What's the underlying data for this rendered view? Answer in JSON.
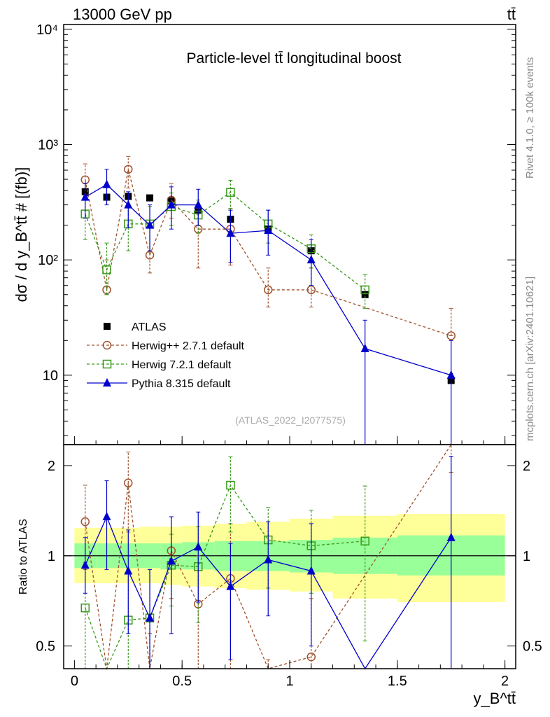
{
  "header": {
    "energy": "13000 GeV pp",
    "process": "tt̄"
  },
  "chart_data": {
    "type": "line",
    "title": "Particle-level tt̄ longitudinal boost",
    "xlabel": "y_B^tt̄",
    "ylabel": "dσ / d y_B^tt̄ # [(fb)]",
    "ratio_ylabel": "Ratio to ATLAS",
    "analysis_tag": "(ATLAS_2022_I2077575)",
    "side_label_top": "Rivet 4.1.0, ≥ 100k events",
    "side_label_bottom": "mcplots.cern.ch [arXiv:2401.10621]",
    "xlim": [
      -0.05,
      2.05
    ],
    "ylim": [
      2.5,
      11000
    ],
    "yscale": "log",
    "ratio_ylim": [
      0.42,
      2.35
    ],
    "x_ticks": [
      0,
      0.5,
      1,
      1.5,
      2
    ],
    "x_tick_labels": [
      "0",
      "0.5",
      "1",
      "1.5",
      "2"
    ],
    "y_ticks": [
      10,
      100,
      1000,
      10000
    ],
    "y_tick_labels": [
      "10",
      "10²",
      "10³",
      "10⁴"
    ],
    "ratio_ticks": [
      0.5,
      1,
      2
    ],
    "ratio_tick_labels": [
      "0.5",
      "1",
      "2"
    ],
    "x": [
      0.05,
      0.15,
      0.25,
      0.35,
      0.45,
      0.575,
      0.725,
      0.9,
      1.1,
      1.35,
      1.75
    ],
    "bin_edges": [
      0,
      0.1,
      0.2,
      0.3,
      0.4,
      0.5,
      0.65,
      0.8,
      1.0,
      1.2,
      1.5,
      2.0
    ],
    "band_inner": [
      [
        0.91,
        1.1
      ],
      [
        0.91,
        1.1
      ],
      [
        0.91,
        1.1
      ],
      [
        0.91,
        1.1
      ],
      [
        0.9,
        1.1
      ],
      [
        0.9,
        1.11
      ],
      [
        0.89,
        1.12
      ],
      [
        0.89,
        1.12
      ],
      [
        0.88,
        1.13
      ],
      [
        0.87,
        1.15
      ],
      [
        0.86,
        1.17
      ]
    ],
    "band_outer": [
      [
        0.81,
        1.24
      ],
      [
        0.81,
        1.24
      ],
      [
        0.81,
        1.24
      ],
      [
        0.81,
        1.25
      ],
      [
        0.8,
        1.25
      ],
      [
        0.79,
        1.26
      ],
      [
        0.78,
        1.28
      ],
      [
        0.77,
        1.3
      ],
      [
        0.76,
        1.33
      ],
      [
        0.72,
        1.36
      ],
      [
        0.7,
        1.38
      ]
    ],
    "series": [
      {
        "name": "ATLAS",
        "color": "#000000",
        "marker": "filled-square",
        "line": "none",
        "values": [
          390,
          350,
          355,
          345,
          325,
          270,
          225,
          185,
          120,
          50,
          9
        ]
      },
      {
        "name": "Herwig++ 2.7.1 default",
        "color": "#a0522d",
        "marker": "open-circle",
        "line": "dashed",
        "values": [
          495,
          55,
          610,
          110,
          330,
          185,
          185,
          55,
          55,
          null,
          22
        ],
        "err_lo": [
          340,
          50,
          420,
          77,
          230,
          85,
          90,
          39,
          39,
          null,
          22
        ],
        "err_hi": [
          680,
          100,
          790,
          195,
          460,
          280,
          280,
          85,
          85,
          null,
          38
        ],
        "ratio": [
          1.3,
          0.16,
          1.75,
          0.32,
          1.04,
          0.69,
          0.84,
          0.3,
          0.46,
          null,
          2.45
        ],
        "ratio_lo": [
          0.9,
          0.1,
          1.2,
          0.2,
          0.72,
          0.37,
          0.4,
          0.15,
          0.2,
          null,
          1.9
        ],
        "ratio_hi": [
          1.72,
          0.26,
          2.22,
          0.55,
          1.35,
          1.0,
          1.28,
          0.45,
          0.72,
          null,
          3.0
        ]
      },
      {
        "name": "Herwig 7.2.1 default",
        "color": "#3a9a1c",
        "marker": "open-square",
        "line": "dashed",
        "values": [
          250,
          82,
          205,
          205,
          290,
          245,
          385,
          205,
          125,
          55,
          null
        ],
        "err_lo": [
          150,
          50,
          120,
          120,
          200,
          170,
          270,
          140,
          85,
          38,
          null
        ],
        "err_hi": [
          350,
          140,
          290,
          290,
          380,
          330,
          490,
          270,
          165,
          75,
          null
        ],
        "ratio": [
          0.67,
          0.24,
          0.61,
          0.62,
          0.93,
          0.92,
          1.72,
          1.13,
          1.08,
          1.12,
          null
        ],
        "ratio_lo": [
          0.4,
          0.15,
          0.35,
          0.35,
          0.68,
          0.6,
          1.2,
          0.78,
          0.75,
          0.52,
          null
        ],
        "ratio_hi": [
          0.95,
          0.38,
          0.9,
          0.9,
          1.18,
          1.25,
          2.14,
          1.45,
          1.42,
          1.71,
          null
        ]
      },
      {
        "name": "Pythia 8.315 default",
        "color": "#0000cc",
        "marker": "filled-triangle",
        "line": "solid",
        "values": [
          350,
          450,
          300,
          200,
          300,
          300,
          170,
          180,
          100,
          17,
          10
        ],
        "err_lo": [
          230,
          300,
          190,
          120,
          185,
          200,
          95,
          110,
          60,
          1,
          1
        ],
        "err_hi": [
          460,
          610,
          390,
          300,
          430,
          410,
          270,
          270,
          150,
          30,
          20
        ],
        "ratio": [
          0.93,
          1.35,
          0.89,
          0.62,
          0.96,
          1.07,
          0.79,
          0.97,
          0.89,
          0.2,
          1.15
        ],
        "ratio_lo": [
          0.75,
          0.9,
          0.55,
          0.3,
          0.55,
          0.7,
          0.45,
          0.63,
          0.5,
          0.05,
          0.2
        ],
        "ratio_hi": [
          1.15,
          1.78,
          1.22,
          0.9,
          1.35,
          1.4,
          1.1,
          1.3,
          1.28,
          0.4,
          2.15
        ]
      }
    ]
  }
}
